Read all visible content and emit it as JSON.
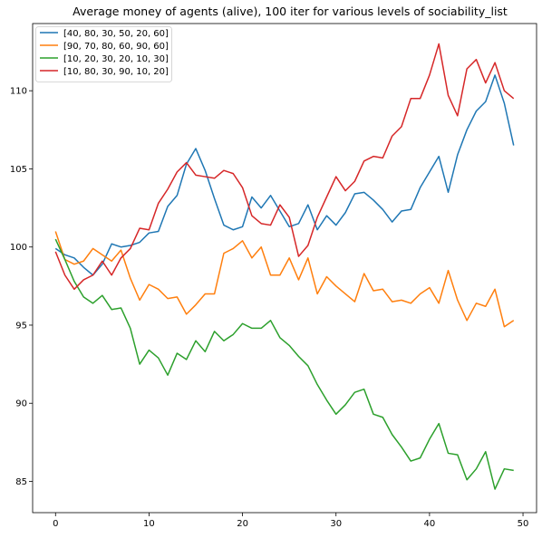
{
  "chart_data": {
    "type": "line",
    "title": "Average money of agents (alive), 100 iter for various levels of sociability_list",
    "xlabel": "",
    "ylabel": "",
    "xlim": [
      -2.45,
      51.45
    ],
    "ylim": [
      83.0,
      114.3
    ],
    "x_ticks": [
      0,
      10,
      20,
      30,
      40,
      50
    ],
    "y_ticks": [
      85,
      90,
      95,
      100,
      105,
      110
    ],
    "legend_position": "top-left",
    "grid": false,
    "x": [
      0,
      1,
      2,
      3,
      4,
      5,
      6,
      7,
      8,
      9,
      10,
      11,
      12,
      13,
      14,
      15,
      16,
      17,
      18,
      19,
      20,
      21,
      22,
      23,
      24,
      25,
      26,
      27,
      28,
      29,
      30,
      31,
      32,
      33,
      34,
      35,
      36,
      37,
      38,
      39,
      40,
      41,
      42,
      43,
      44,
      45,
      46,
      47,
      48,
      49
    ],
    "series": [
      {
        "name": "[40, 80, 30, 50, 20, 60]",
        "color": "#1f77b4",
        "values": [
          99.9,
          99.5,
          99.3,
          98.7,
          98.2,
          98.9,
          100.2,
          100.0,
          100.1,
          100.3,
          100.9,
          101.0,
          102.6,
          103.3,
          105.3,
          106.3,
          104.9,
          103.1,
          101.4,
          101.1,
          101.3,
          103.2,
          102.5,
          103.3,
          102.3,
          101.3,
          101.5,
          102.7,
          101.1,
          102.0,
          101.4,
          102.2,
          103.4,
          103.5,
          103.0,
          102.4,
          101.6,
          102.3,
          102.4,
          103.8,
          104.8,
          105.8,
          103.5,
          105.9,
          107.5,
          108.7,
          109.3,
          111.0,
          109.2,
          106.5
        ]
      },
      {
        "name": "[90, 70, 80, 60, 90, 60]",
        "color": "#ff7f0e",
        "values": [
          101.0,
          99.2,
          98.9,
          99.1,
          99.9,
          99.5,
          99.1,
          99.8,
          98.0,
          96.6,
          97.6,
          97.3,
          96.7,
          96.8,
          95.7,
          96.3,
          97.0,
          97.0,
          99.6,
          99.9,
          100.4,
          99.3,
          100.0,
          98.2,
          98.2,
          99.3,
          97.9,
          99.3,
          97.0,
          98.1,
          97.5,
          97.0,
          96.5,
          98.3,
          97.2,
          97.3,
          96.5,
          96.6,
          96.4,
          97.0,
          97.4,
          96.4,
          98.5,
          96.6,
          95.3,
          96.4,
          96.2,
          97.3,
          94.9,
          95.3
        ]
      },
      {
        "name": "[10, 20, 30, 20, 10, 30]",
        "color": "#2ca02c",
        "values": [
          100.5,
          99.2,
          97.8,
          96.8,
          96.4,
          96.9,
          96.0,
          96.1,
          94.8,
          92.5,
          93.4,
          92.9,
          91.8,
          93.2,
          92.8,
          94.0,
          93.3,
          94.6,
          94.0,
          94.4,
          95.1,
          94.8,
          94.8,
          95.3,
          94.2,
          93.7,
          93.0,
          92.4,
          91.2,
          90.2,
          89.3,
          89.9,
          90.7,
          90.9,
          89.3,
          89.1,
          88.0,
          87.2,
          86.3,
          86.5,
          87.7,
          88.7,
          86.8,
          86.7,
          85.1,
          85.8,
          86.9,
          84.5,
          85.8,
          85.7
        ]
      },
      {
        "name": "[10, 80, 30, 90, 10, 20]",
        "color": "#d62728",
        "values": [
          99.7,
          98.2,
          97.3,
          97.9,
          98.2,
          99.1,
          98.2,
          99.3,
          99.9,
          101.2,
          101.1,
          102.8,
          103.7,
          104.8,
          105.4,
          104.6,
          104.5,
          104.4,
          104.9,
          104.7,
          103.8,
          102.0,
          101.5,
          101.4,
          102.7,
          101.9,
          99.4,
          100.1,
          101.9,
          103.2,
          104.5,
          103.6,
          104.2,
          105.5,
          105.8,
          105.7,
          107.1,
          107.7,
          109.5,
          109.5,
          111.0,
          113.0,
          109.7,
          108.4,
          111.4,
          112.0,
          110.5,
          111.8,
          110.0,
          109.5
        ]
      }
    ]
  }
}
